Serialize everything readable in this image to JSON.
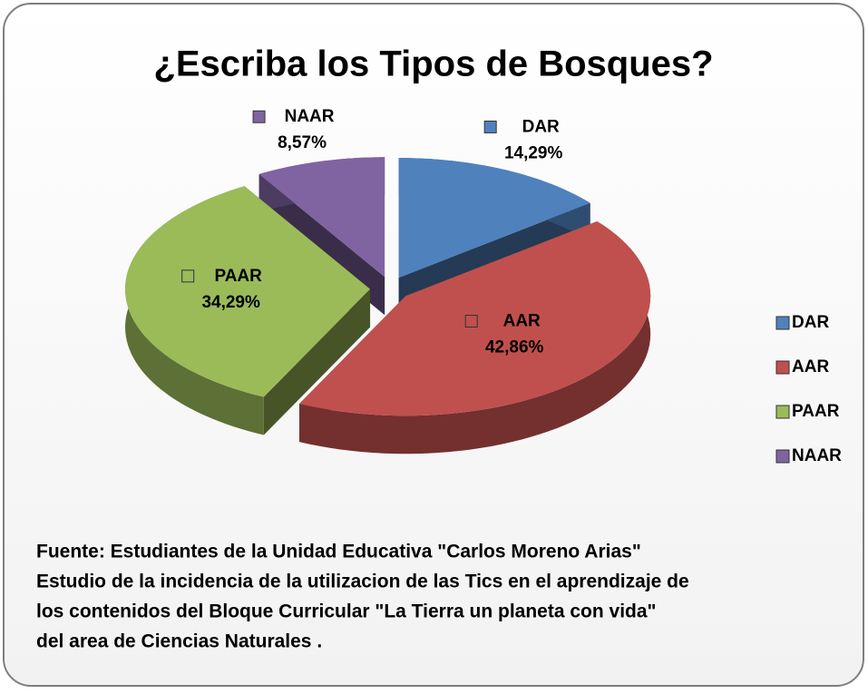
{
  "chart_data": {
    "type": "pie",
    "title": "¿Escriba los Tipos de Bosques?",
    "categories": [
      "DAR",
      "AAR",
      "PAAR",
      "NAAR"
    ],
    "values": [
      14.29,
      42.86,
      34.29,
      8.57
    ],
    "value_labels": [
      "14,29%",
      "42,86%",
      "34,29%",
      "8,57%"
    ],
    "colors": [
      "#4f81bd",
      "#c0504d",
      "#9bbb59",
      "#8064a2"
    ],
    "legend": "right",
    "note": [
      "Fuente:  Estudiantes de la Unidad Educativa \"Carlos Moreno Arias\"",
      "Estudio de la incidencia de la utilizacion de las Tics en el aprendizaje de",
      "los contenidos  del Bloque Curricular \"La Tierra un planeta con vida\"",
      "del area de Ciencias Naturales ."
    ]
  }
}
